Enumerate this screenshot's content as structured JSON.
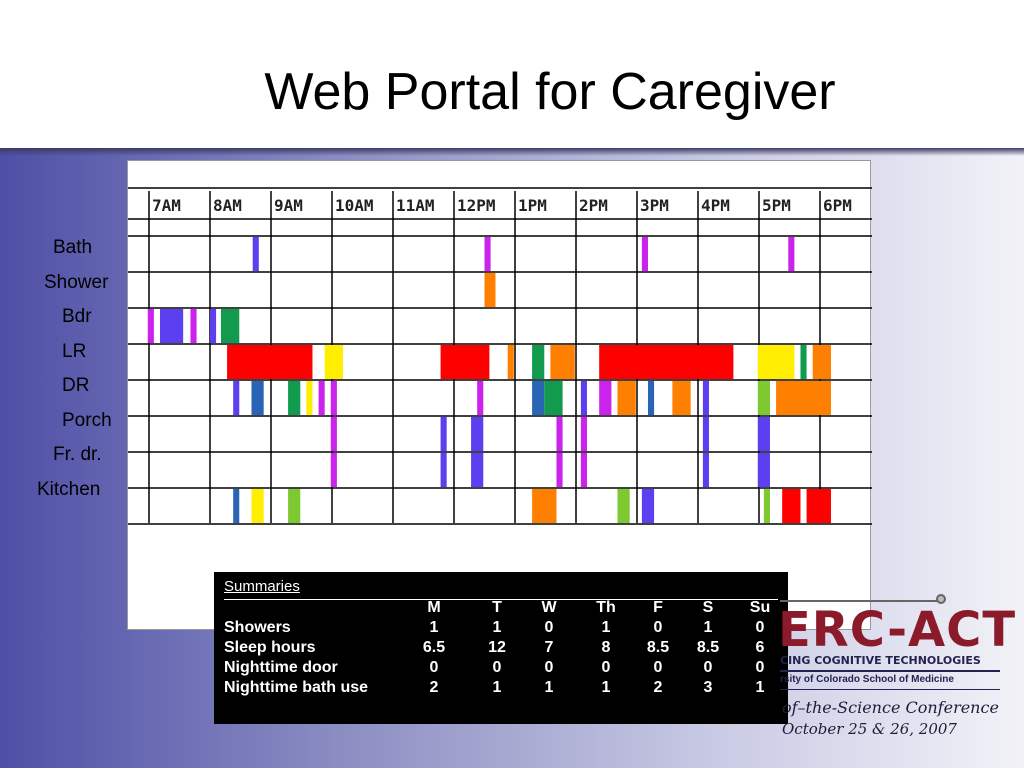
{
  "slide": {
    "title": "Web Portal for Caregiver"
  },
  "chart_data": {
    "type": "timeline",
    "hours": [
      "7AM",
      "8AM",
      "9AM",
      "10AM",
      "11AM",
      "12PM",
      "1PM",
      "2PM",
      "3PM",
      "4PM",
      "5PM",
      "6PM"
    ],
    "rows": [
      "Bath",
      "Shower",
      "Bdr",
      "LR",
      "DR",
      "Porch",
      "Fr. dr.",
      "Kitchen"
    ],
    "events": [
      {
        "row": 0,
        "start": 8.7,
        "end": 8.8,
        "color": "#5b3ff0"
      },
      {
        "row": 0,
        "start": 12.5,
        "end": 12.6,
        "color": "#cc22ee"
      },
      {
        "row": 0,
        "start": 15.08,
        "end": 15.18,
        "color": "#cc22ee"
      },
      {
        "row": 0,
        "start": 17.48,
        "end": 17.58,
        "color": "#cc22ee"
      },
      {
        "row": 1,
        "start": 12.5,
        "end": 12.68,
        "color": "#ff7f00"
      },
      {
        "row": 2,
        "start": 6.98,
        "end": 7.08,
        "color": "#cc22ee"
      },
      {
        "row": 2,
        "start": 7.18,
        "end": 7.56,
        "color": "#5b3ff0"
      },
      {
        "row": 2,
        "start": 7.68,
        "end": 7.78,
        "color": "#cc22ee"
      },
      {
        "row": 2,
        "start": 8.0,
        "end": 8.1,
        "color": "#5b3ff0"
      },
      {
        "row": 2,
        "start": 8.18,
        "end": 8.48,
        "color": "#129a4e"
      },
      {
        "row": 3,
        "start": 8.28,
        "end": 9.68,
        "color": "#ff0000"
      },
      {
        "row": 3,
        "start": 9.88,
        "end": 10.18,
        "color": "#ffee00"
      },
      {
        "row": 3,
        "start": 11.78,
        "end": 12.58,
        "color": "#ff0000"
      },
      {
        "row": 3,
        "start": 12.88,
        "end": 12.98,
        "color": "#ff7f00"
      },
      {
        "row": 3,
        "start": 13.28,
        "end": 13.48,
        "color": "#129a4e"
      },
      {
        "row": 3,
        "start": 13.58,
        "end": 13.98,
        "color": "#ff7f00"
      },
      {
        "row": 3,
        "start": 14.38,
        "end": 16.58,
        "color": "#ff0000"
      },
      {
        "row": 3,
        "start": 16.98,
        "end": 17.58,
        "color": "#ffee00"
      },
      {
        "row": 3,
        "start": 17.68,
        "end": 17.78,
        "color": "#129a4e"
      },
      {
        "row": 3,
        "start": 17.88,
        "end": 18.18,
        "color": "#ff7f00"
      },
      {
        "row": 4,
        "start": 8.38,
        "end": 8.48,
        "color": "#5b3ff0"
      },
      {
        "row": 4,
        "start": 8.68,
        "end": 8.88,
        "color": "#2a64b4"
      },
      {
        "row": 4,
        "start": 9.28,
        "end": 9.48,
        "color": "#129a4e"
      },
      {
        "row": 4,
        "start": 9.58,
        "end": 9.68,
        "color": "#ffee00"
      },
      {
        "row": 4,
        "start": 9.78,
        "end": 9.88,
        "color": "#cc22ee"
      },
      {
        "row": 4,
        "start": 9.98,
        "end": 10.08,
        "color": "#cc22ee"
      },
      {
        "row": 4,
        "start": 12.38,
        "end": 12.48,
        "color": "#cc22ee"
      },
      {
        "row": 4,
        "start": 13.28,
        "end": 13.48,
        "color": "#2a64b4"
      },
      {
        "row": 4,
        "start": 13.48,
        "end": 13.78,
        "color": "#129a4e"
      },
      {
        "row": 4,
        "start": 14.08,
        "end": 14.18,
        "color": "#5b3ff0"
      },
      {
        "row": 4,
        "start": 14.38,
        "end": 14.58,
        "color": "#cc22ee"
      },
      {
        "row": 4,
        "start": 14.68,
        "end": 14.98,
        "color": "#ff7f00"
      },
      {
        "row": 4,
        "start": 15.18,
        "end": 15.28,
        "color": "#2a64b4"
      },
      {
        "row": 4,
        "start": 15.58,
        "end": 15.88,
        "color": "#ff7f00"
      },
      {
        "row": 4,
        "start": 16.08,
        "end": 16.18,
        "color": "#5b3ff0"
      },
      {
        "row": 4,
        "start": 16.98,
        "end": 17.18,
        "color": "#7ec832"
      },
      {
        "row": 4,
        "start": 17.28,
        "end": 18.18,
        "color": "#ff7f00"
      },
      {
        "row": 5,
        "start": 9.98,
        "end": 10.08,
        "color": "#cc22ee"
      },
      {
        "row": 5,
        "start": 11.78,
        "end": 11.88,
        "color": "#5b3ff0"
      },
      {
        "row": 5,
        "start": 12.28,
        "end": 12.48,
        "color": "#5b3ff0"
      },
      {
        "row": 5,
        "start": 13.68,
        "end": 13.78,
        "color": "#cc22ee"
      },
      {
        "row": 5,
        "start": 14.08,
        "end": 14.18,
        "color": "#cc22ee"
      },
      {
        "row": 5,
        "start": 16.08,
        "end": 16.18,
        "color": "#5b3ff0"
      },
      {
        "row": 5,
        "start": 16.98,
        "end": 17.18,
        "color": "#5b3ff0"
      },
      {
        "row": 6,
        "start": 9.98,
        "end": 10.08,
        "color": "#cc22ee"
      },
      {
        "row": 6,
        "start": 11.78,
        "end": 11.88,
        "color": "#5b3ff0"
      },
      {
        "row": 6,
        "start": 12.28,
        "end": 12.48,
        "color": "#5b3ff0"
      },
      {
        "row": 6,
        "start": 13.68,
        "end": 13.78,
        "color": "#cc22ee"
      },
      {
        "row": 6,
        "start": 14.08,
        "end": 14.18,
        "color": "#cc22ee"
      },
      {
        "row": 6,
        "start": 16.08,
        "end": 16.18,
        "color": "#5b3ff0"
      },
      {
        "row": 6,
        "start": 16.98,
        "end": 17.18,
        "color": "#5b3ff0"
      },
      {
        "row": 7,
        "start": 8.38,
        "end": 8.48,
        "color": "#2a64b4"
      },
      {
        "row": 7,
        "start": 8.68,
        "end": 8.88,
        "color": "#ffee00"
      },
      {
        "row": 7,
        "start": 9.28,
        "end": 9.48,
        "color": "#7ec832"
      },
      {
        "row": 7,
        "start": 13.28,
        "end": 13.68,
        "color": "#ff7f00"
      },
      {
        "row": 7,
        "start": 14.68,
        "end": 14.88,
        "color": "#7ec832"
      },
      {
        "row": 7,
        "start": 15.08,
        "end": 15.28,
        "color": "#5b3ff0"
      },
      {
        "row": 7,
        "start": 17.08,
        "end": 17.18,
        "color": "#7ec832"
      },
      {
        "row": 7,
        "start": 17.38,
        "end": 17.68,
        "color": "#ff0000"
      },
      {
        "row": 7,
        "start": 17.78,
        "end": 18.18,
        "color": "#ff0000"
      }
    ]
  },
  "summary": {
    "title": "Summaries",
    "days": [
      "M",
      "T",
      "W",
      "Th",
      "F",
      "S",
      "Su"
    ],
    "rows": [
      {
        "label": "Showers",
        "values": [
          "1",
          "1",
          "0",
          "1",
          "0",
          "1",
          "0"
        ]
      },
      {
        "label": "Sleep hours",
        "values": [
          "6.5",
          "12",
          "7",
          "8",
          "8.5",
          "8.5",
          "6"
        ]
      },
      {
        "label": "Nighttime door",
        "values": [
          "0",
          "0",
          "0",
          "0",
          "0",
          "0",
          "0"
        ]
      },
      {
        "label": "Nighttime bath use",
        "values": [
          "2",
          "1",
          "1",
          "1",
          "2",
          "3",
          "1"
        ]
      }
    ]
  },
  "logo": {
    "name": "ERC-ACT",
    "tagline": "CING COGNITIVE TECHNOLOGIES",
    "school": "rsity of Colorado School of Medicine",
    "conference": "of–the-Science Conference",
    "date": "October 25 & 26, 2007"
  }
}
